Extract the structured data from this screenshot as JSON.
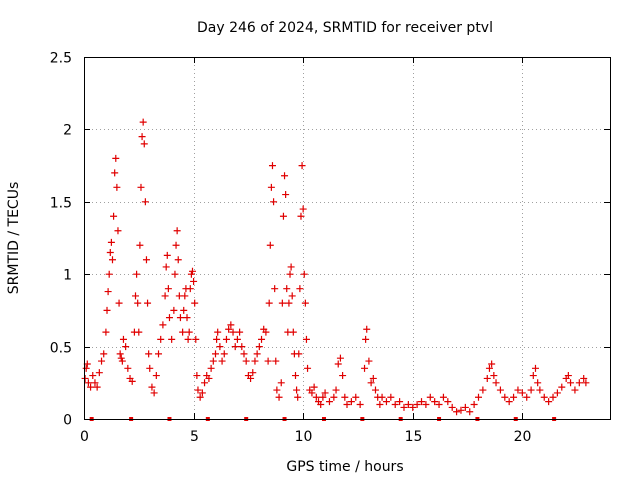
{
  "chart_data": {
    "type": "scatter",
    "title": "Day 246 of 2024, SRMTID for receiver ptvl",
    "xlabel": "GPS time / hours",
    "ylabel": "SRMTID / TECUs",
    "xlim": [
      0,
      24
    ],
    "ylim": [
      0,
      2.5
    ],
    "xticks": [
      0,
      5,
      10,
      15,
      20
    ],
    "yticks": [
      0,
      0.5,
      1,
      1.5,
      2,
      2.5
    ],
    "ytick_labels": [
      "0",
      "0.5",
      "1",
      "1.5",
      "2",
      "2.5"
    ],
    "grid": true,
    "marker": "plus",
    "color": "#e00000",
    "series": [
      {
        "name": "SRMTID",
        "points": [
          [
            0.05,
            0.28
          ],
          [
            0.1,
            0.35
          ],
          [
            0.15,
            0.38
          ],
          [
            0.2,
            0.25
          ],
          [
            0.3,
            0.22
          ],
          [
            0.4,
            0.3
          ],
          [
            0.5,
            0.25
          ],
          [
            0.6,
            0.22
          ],
          [
            0.7,
            0.32
          ],
          [
            0.8,
            0.4
          ],
          [
            0.9,
            0.45
          ],
          [
            1.0,
            0.6
          ],
          [
            1.05,
            0.75
          ],
          [
            1.1,
            0.88
          ],
          [
            1.15,
            1.0
          ],
          [
            1.2,
            1.15
          ],
          [
            1.25,
            1.22
          ],
          [
            1.3,
            1.1
          ],
          [
            1.35,
            1.4
          ],
          [
            1.4,
            1.7
          ],
          [
            1.45,
            1.8
          ],
          [
            1.5,
            1.6
          ],
          [
            1.55,
            1.3
          ],
          [
            1.6,
            0.8
          ],
          [
            1.65,
            0.45
          ],
          [
            1.7,
            0.42
          ],
          [
            1.75,
            0.4
          ],
          [
            1.8,
            0.55
          ],
          [
            1.9,
            0.5
          ],
          [
            2.0,
            0.35
          ],
          [
            2.1,
            0.28
          ],
          [
            2.2,
            0.26
          ],
          [
            2.3,
            0.6
          ],
          [
            2.35,
            0.85
          ],
          [
            2.4,
            1.0
          ],
          [
            2.45,
            0.8
          ],
          [
            2.5,
            0.6
          ],
          [
            2.55,
            1.2
          ],
          [
            2.6,
            1.6
          ],
          [
            2.65,
            1.95
          ],
          [
            2.7,
            2.05
          ],
          [
            2.75,
            1.9
          ],
          [
            2.8,
            1.5
          ],
          [
            2.85,
            1.1
          ],
          [
            2.9,
            0.8
          ],
          [
            2.95,
            0.45
          ],
          [
            3.0,
            0.35
          ],
          [
            3.1,
            0.22
          ],
          [
            3.2,
            0.18
          ],
          [
            3.3,
            0.3
          ],
          [
            3.4,
            0.45
          ],
          [
            3.5,
            0.55
          ],
          [
            3.6,
            0.65
          ],
          [
            3.7,
            0.85
          ],
          [
            3.75,
            1.05
          ],
          [
            3.8,
            1.13
          ],
          [
            3.85,
            0.9
          ],
          [
            3.9,
            0.7
          ],
          [
            4.0,
            0.55
          ],
          [
            4.1,
            0.75
          ],
          [
            4.15,
            1.0
          ],
          [
            4.2,
            1.2
          ],
          [
            4.25,
            1.3
          ],
          [
            4.3,
            1.1
          ],
          [
            4.35,
            0.85
          ],
          [
            4.4,
            0.7
          ],
          [
            4.5,
            0.6
          ],
          [
            4.55,
            0.75
          ],
          [
            4.6,
            0.85
          ],
          [
            4.65,
            0.9
          ],
          [
            4.7,
            0.7
          ],
          [
            4.75,
            0.55
          ],
          [
            4.8,
            0.6
          ],
          [
            4.85,
            0.9
          ],
          [
            4.9,
            1.0
          ],
          [
            4.95,
            1.02
          ],
          [
            5.0,
            0.95
          ],
          [
            5.05,
            0.8
          ],
          [
            5.1,
            0.55
          ],
          [
            5.15,
            0.3
          ],
          [
            5.2,
            0.2
          ],
          [
            5.3,
            0.15
          ],
          [
            5.4,
            0.18
          ],
          [
            5.5,
            0.25
          ],
          [
            5.6,
            0.3
          ],
          [
            5.7,
            0.28
          ],
          [
            5.8,
            0.35
          ],
          [
            5.9,
            0.4
          ],
          [
            6.0,
            0.45
          ],
          [
            6.05,
            0.55
          ],
          [
            6.1,
            0.6
          ],
          [
            6.2,
            0.5
          ],
          [
            6.3,
            0.4
          ],
          [
            6.4,
            0.45
          ],
          [
            6.5,
            0.55
          ],
          [
            6.6,
            0.62
          ],
          [
            6.7,
            0.65
          ],
          [
            6.8,
            0.6
          ],
          [
            6.9,
            0.5
          ],
          [
            7.0,
            0.55
          ],
          [
            7.1,
            0.6
          ],
          [
            7.2,
            0.5
          ],
          [
            7.3,
            0.45
          ],
          [
            7.4,
            0.4
          ],
          [
            7.5,
            0.3
          ],
          [
            7.6,
            0.28
          ],
          [
            7.7,
            0.32
          ],
          [
            7.8,
            0.4
          ],
          [
            7.9,
            0.45
          ],
          [
            8.0,
            0.5
          ],
          [
            8.1,
            0.55
          ],
          [
            8.2,
            0.62
          ],
          [
            8.3,
            0.6
          ],
          [
            8.4,
            0.4
          ],
          [
            8.45,
            0.8
          ],
          [
            8.5,
            1.2
          ],
          [
            8.55,
            1.6
          ],
          [
            8.6,
            1.75
          ],
          [
            8.65,
            1.5
          ],
          [
            8.7,
            0.9
          ],
          [
            8.75,
            0.4
          ],
          [
            8.8,
            0.2
          ],
          [
            8.9,
            0.15
          ],
          [
            9.0,
            0.25
          ],
          [
            9.05,
            0.8
          ],
          [
            9.1,
            1.4
          ],
          [
            9.15,
            1.68
          ],
          [
            9.2,
            1.55
          ],
          [
            9.25,
            0.9
          ],
          [
            9.3,
            0.6
          ],
          [
            9.35,
            0.8
          ],
          [
            9.4,
            1.0
          ],
          [
            9.45,
            1.05
          ],
          [
            9.5,
            0.85
          ],
          [
            9.55,
            0.6
          ],
          [
            9.6,
            0.45
          ],
          [
            9.65,
            0.3
          ],
          [
            9.7,
            0.2
          ],
          [
            9.75,
            0.15
          ],
          [
            9.8,
            0.45
          ],
          [
            9.85,
            0.9
          ],
          [
            9.9,
            1.4
          ],
          [
            9.95,
            1.75
          ],
          [
            10.0,
            1.45
          ],
          [
            10.05,
            1.0
          ],
          [
            10.1,
            0.8
          ],
          [
            10.15,
            0.55
          ],
          [
            10.2,
            0.35
          ],
          [
            10.3,
            0.2
          ],
          [
            10.4,
            0.18
          ],
          [
            10.5,
            0.22
          ],
          [
            10.6,
            0.15
          ],
          [
            10.7,
            0.12
          ],
          [
            10.8,
            0.1
          ],
          [
            10.9,
            0.15
          ],
          [
            11.0,
            0.18
          ],
          [
            11.2,
            0.12
          ],
          [
            11.4,
            0.15
          ],
          [
            11.5,
            0.2
          ],
          [
            11.6,
            0.38
          ],
          [
            11.7,
            0.42
          ],
          [
            11.8,
            0.3
          ],
          [
            11.9,
            0.15
          ],
          [
            12.0,
            0.1
          ],
          [
            12.2,
            0.12
          ],
          [
            12.4,
            0.15
          ],
          [
            12.6,
            0.1
          ],
          [
            12.8,
            0.35
          ],
          [
            12.85,
            0.55
          ],
          [
            12.9,
            0.62
          ],
          [
            13.0,
            0.4
          ],
          [
            13.1,
            0.25
          ],
          [
            13.2,
            0.28
          ],
          [
            13.3,
            0.2
          ],
          [
            13.4,
            0.15
          ],
          [
            13.5,
            0.1
          ],
          [
            13.6,
            0.15
          ],
          [
            13.8,
            0.12
          ],
          [
            14.0,
            0.15
          ],
          [
            14.2,
            0.1
          ],
          [
            14.4,
            0.12
          ],
          [
            14.6,
            0.08
          ],
          [
            14.8,
            0.1
          ],
          [
            15.0,
            0.08
          ],
          [
            15.2,
            0.1
          ],
          [
            15.4,
            0.12
          ],
          [
            15.6,
            0.1
          ],
          [
            15.8,
            0.15
          ],
          [
            16.0,
            0.12
          ],
          [
            16.2,
            0.1
          ],
          [
            16.4,
            0.15
          ],
          [
            16.6,
            0.12
          ],
          [
            16.8,
            0.08
          ],
          [
            17.0,
            0.05
          ],
          [
            17.2,
            0.06
          ],
          [
            17.4,
            0.08
          ],
          [
            17.6,
            0.05
          ],
          [
            17.8,
            0.1
          ],
          [
            18.0,
            0.15
          ],
          [
            18.2,
            0.2
          ],
          [
            18.4,
            0.28
          ],
          [
            18.5,
            0.35
          ],
          [
            18.6,
            0.38
          ],
          [
            18.7,
            0.3
          ],
          [
            18.8,
            0.25
          ],
          [
            19.0,
            0.2
          ],
          [
            19.2,
            0.15
          ],
          [
            19.4,
            0.12
          ],
          [
            19.6,
            0.15
          ],
          [
            19.8,
            0.2
          ],
          [
            20.0,
            0.18
          ],
          [
            20.2,
            0.15
          ],
          [
            20.4,
            0.2
          ],
          [
            20.5,
            0.3
          ],
          [
            20.6,
            0.35
          ],
          [
            20.7,
            0.25
          ],
          [
            20.8,
            0.2
          ],
          [
            21.0,
            0.15
          ],
          [
            21.2,
            0.12
          ],
          [
            21.4,
            0.15
          ],
          [
            21.6,
            0.18
          ],
          [
            21.8,
            0.22
          ],
          [
            22.0,
            0.28
          ],
          [
            22.1,
            0.3
          ],
          [
            22.2,
            0.25
          ],
          [
            22.4,
            0.2
          ],
          [
            22.6,
            0.25
          ],
          [
            22.8,
            0.28
          ],
          [
            22.9,
            0.25
          ]
        ]
      }
    ],
    "baseline_markers_x": [
      0.35,
      2.15,
      3.9,
      5.65,
      7.4,
      9.15,
      10.95,
      12.7,
      14.45,
      16.2,
      17.95,
      19.7,
      21.45
    ]
  }
}
